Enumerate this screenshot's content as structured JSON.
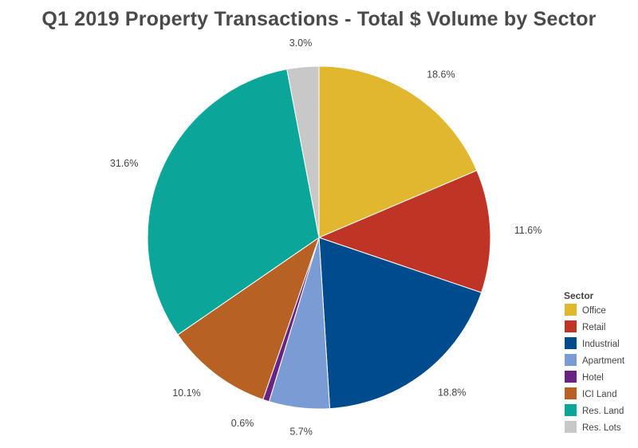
{
  "chart_data": {
    "type": "pie",
    "title": "Q1 2019 Property Transactions - Total $ Volume by Sector",
    "start_angle_deg": 0,
    "direction": "clockwise",
    "legend": {
      "title": "Sector",
      "position": "right-bottom"
    },
    "slices": [
      {
        "label": "Office",
        "value": 18.6,
        "display": "18.6%",
        "color": "#E0B72F"
      },
      {
        "label": "Retail",
        "value": 11.6,
        "display": "11.6%",
        "color": "#C03426"
      },
      {
        "label": "Industrial",
        "value": 18.8,
        "display": "18.8%",
        "color": "#004B8D"
      },
      {
        "label": "Apartment",
        "value": 5.7,
        "display": "5.7%",
        "color": "#7A9BD3"
      },
      {
        "label": "Hotel",
        "value": 0.6,
        "display": "0.6%",
        "color": "#6A2383"
      },
      {
        "label": "ICI Land",
        "value": 10.1,
        "display": "10.1%",
        "color": "#B86125"
      },
      {
        "label": "Res. Land",
        "value": 31.6,
        "display": "31.6%",
        "color": "#0AA69A"
      },
      {
        "label": "Res. Lots",
        "value": 3.0,
        "display": "3.0%",
        "color": "#C8C8C8"
      }
    ]
  }
}
